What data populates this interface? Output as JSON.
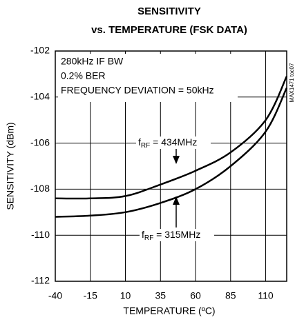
{
  "chart_data": {
    "type": "line",
    "title": "SENSITIVITY",
    "subtitle": "vs. TEMPERATURE (FSK DATA)",
    "x_label": "TEMPERATURE (ºC)",
    "y_label": "SENSITIVITY (dBm)",
    "annotations": [
      "280kHz IF BW",
      "0.2% BER",
      "FREQUENCY DEVIATION = 50kHz"
    ],
    "note": "MAX1471 toc07",
    "x": [
      -40,
      -15,
      10,
      35,
      60,
      85,
      110,
      125
    ],
    "series": [
      {
        "label_main": "f",
        "label_sub": "RF",
        "label_rest": " = 434MHz",
        "color": "#000000",
        "values": [
          -108.4,
          -108.4,
          -108.3,
          -107.8,
          -107.2,
          -106.4,
          -105.0,
          -103.1
        ]
      },
      {
        "label_main": "f",
        "label_sub": "RF",
        "label_rest": " = 315MHz",
        "color": "#000000",
        "values": [
          -109.2,
          -109.15,
          -109.0,
          -108.6,
          -108.0,
          -107.0,
          -105.5,
          -103.6
        ]
      }
    ],
    "xlim": [
      -40,
      125
    ],
    "xticks": [
      -40,
      -15,
      10,
      35,
      60,
      85,
      110
    ],
    "ylim": [
      -112,
      -102
    ],
    "yticks": [
      -112,
      -110,
      -108,
      -106,
      -104,
      -102
    ],
    "grid": true
  }
}
